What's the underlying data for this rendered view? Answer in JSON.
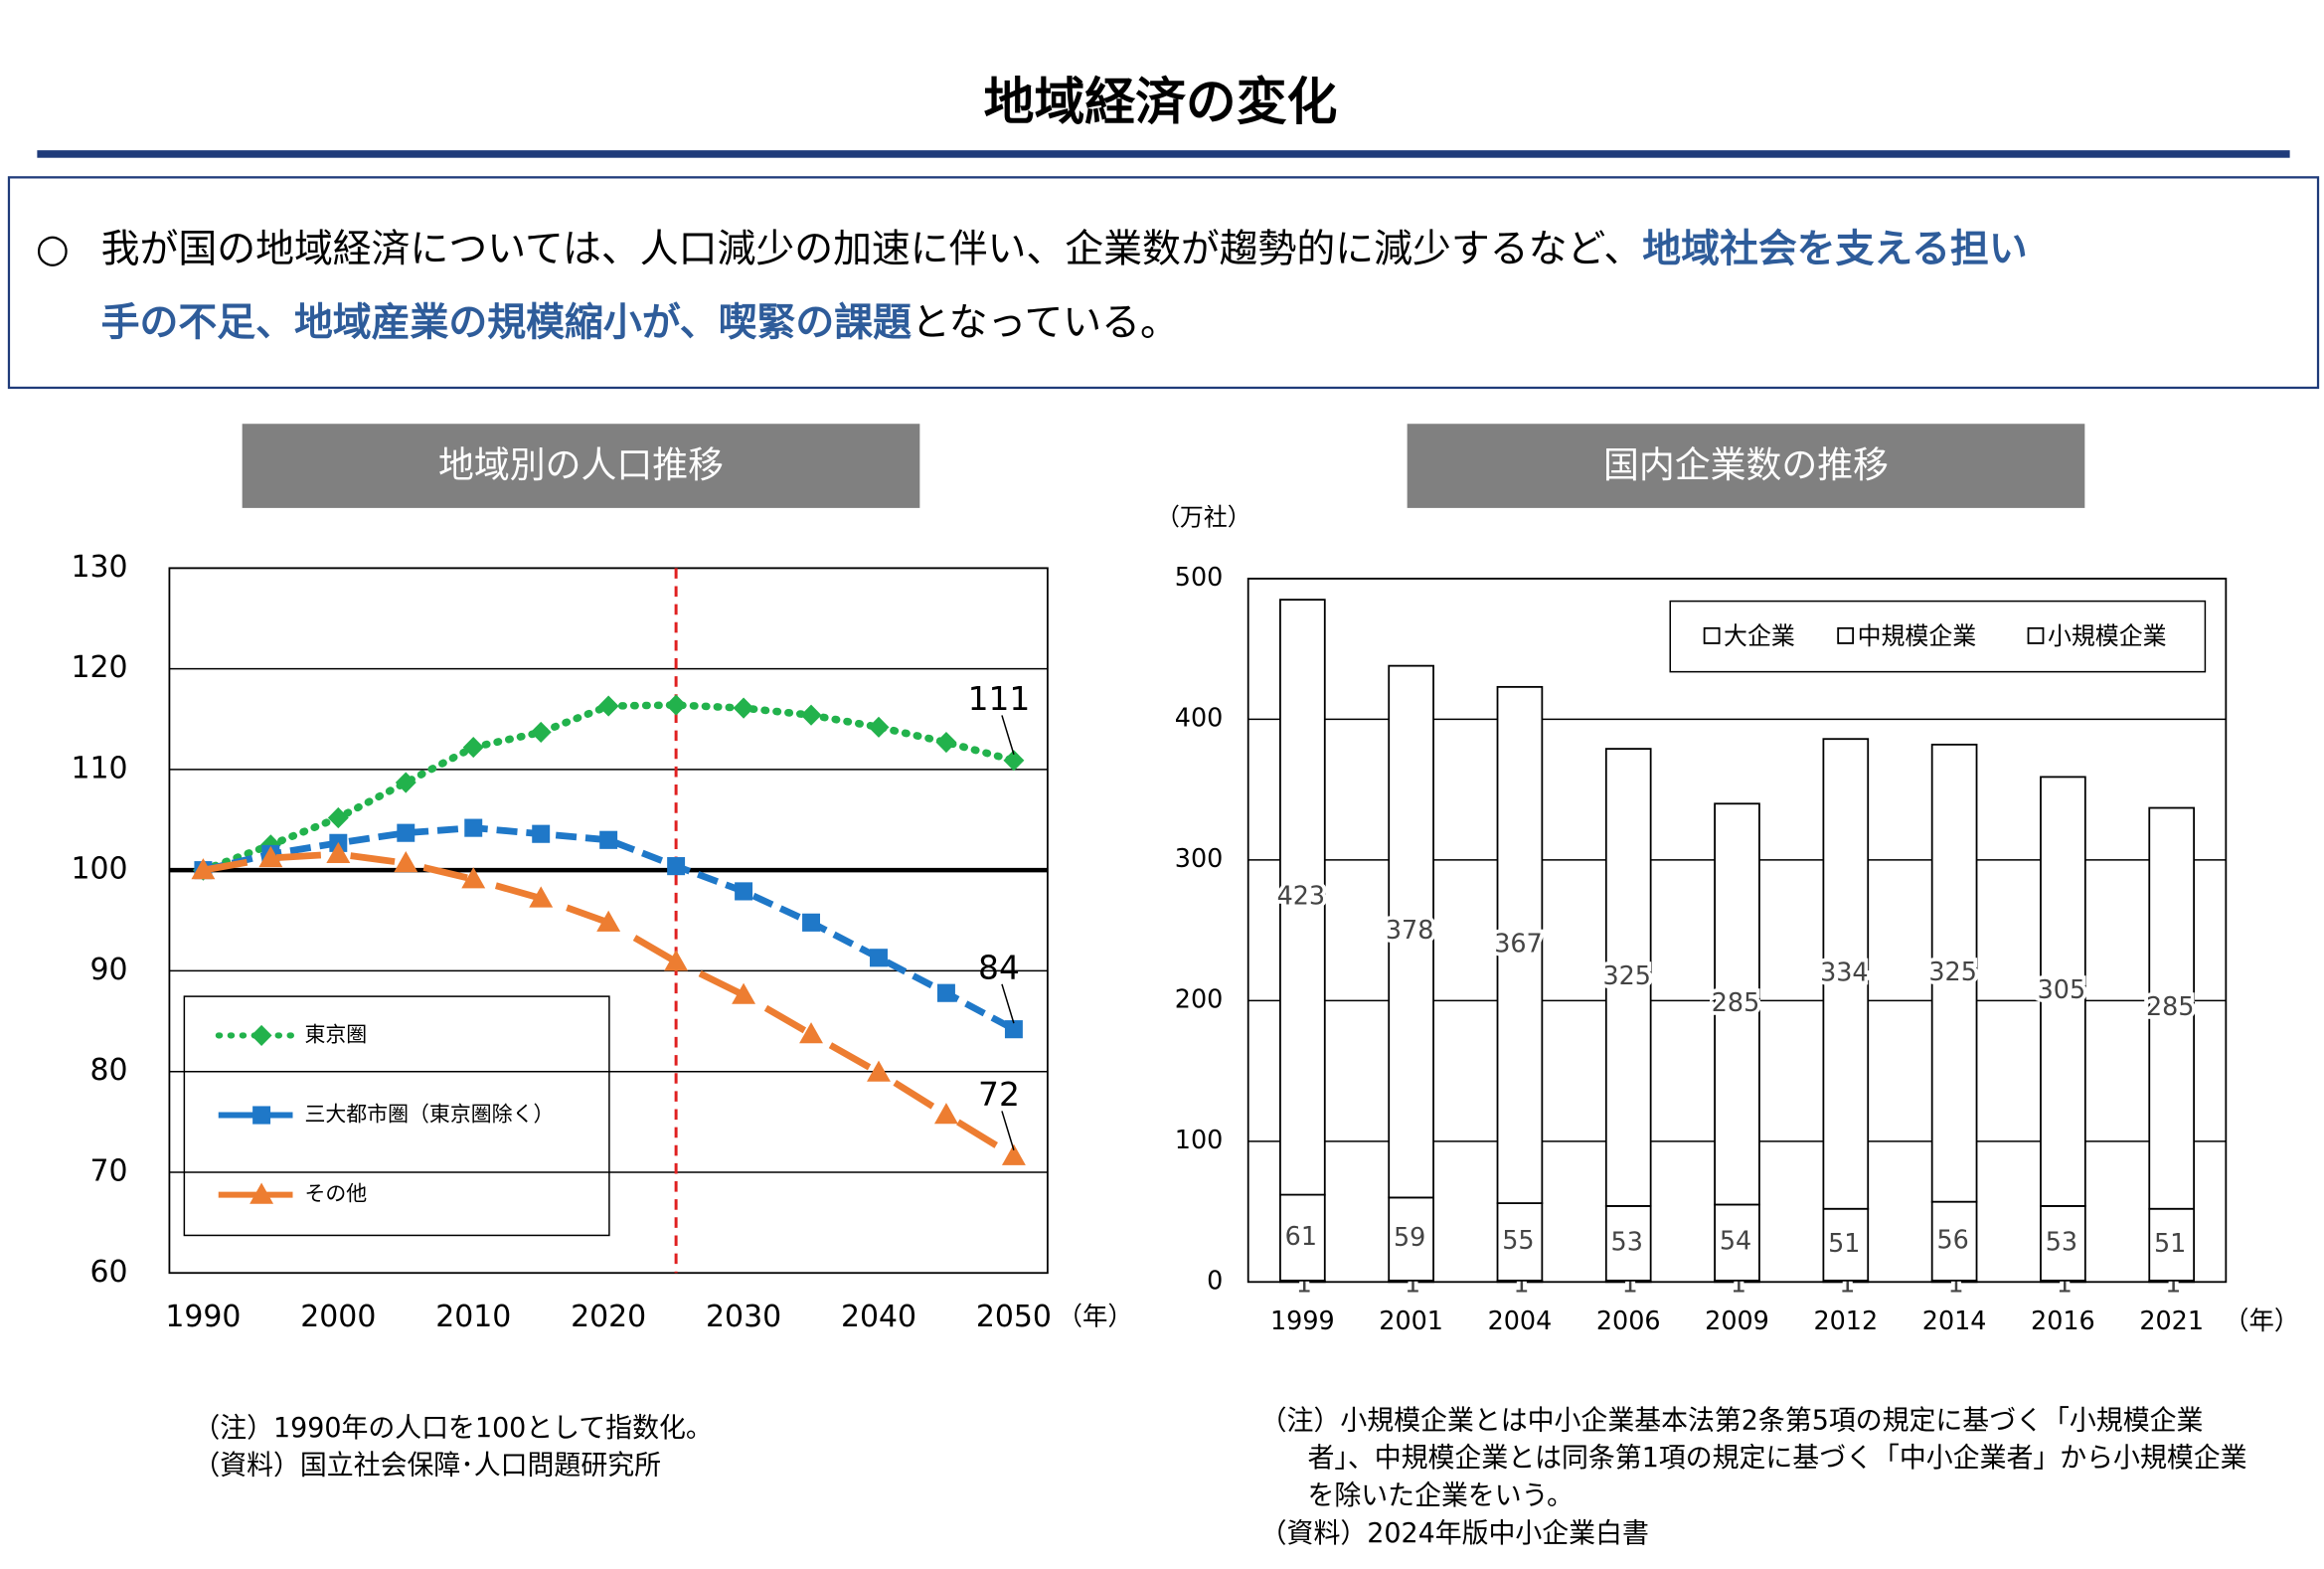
{
  "header": {
    "title": "地域経済の変化",
    "bullet": "○",
    "summary": [
      "我が国の地域経済については、人口減少の加速に伴い、企業数が趨勢的に減少するなど、",
      "地域社会を支える担い",
      "手の不足、地域産業の規模縮小が、喫緊の課題",
      "となっている。"
    ]
  },
  "chart_data": [
    {
      "type": "line",
      "title": "地域別の人口推移",
      "x_unit": "（年）",
      "x": [
        1990,
        1995,
        2000,
        2005,
        2010,
        2015,
        2020,
        2025,
        2030,
        2035,
        2040,
        2045,
        2050
      ],
      "xlim": [
        1987.5,
        2052.5
      ],
      "xticks": [
        1990,
        2000,
        2010,
        2020,
        2030,
        2040,
        2050
      ],
      "ylim": [
        60,
        130
      ],
      "yticks": [
        60,
        70,
        80,
        90,
        100,
        110,
        120,
        130
      ],
      "grid": true,
      "reference_y": 100,
      "marker_x": 2025,
      "legend": "lower left",
      "series": [
        {
          "name": "東京圏",
          "color": "#22b24c",
          "line_style": "dotted",
          "marker": "diamond",
          "values": [
            100,
            102.5,
            105.2,
            108.7,
            112.2,
            113.7,
            116.3,
            116.4,
            116.1,
            115.4,
            114.2,
            112.7,
            110.9
          ],
          "value_labels": [
            null,
            null,
            null,
            null,
            null,
            null,
            null,
            null,
            null,
            null,
            null,
            null,
            "111"
          ]
        },
        {
          "name": "三大都市圏（東京圏除く）",
          "color": "#1f78c8",
          "line_style": "dashed",
          "marker": "square",
          "values": [
            100,
            101.6,
            102.7,
            103.7,
            104.2,
            103.6,
            103,
            100.4,
            97.9,
            94.8,
            91.3,
            87.8,
            84.2
          ],
          "value_labels": [
            null,
            null,
            null,
            null,
            null,
            null,
            null,
            null,
            null,
            null,
            null,
            null,
            "84"
          ]
        },
        {
          "name": "その他",
          "color": "#ed7d31",
          "line_style": "broken",
          "marker": "triangle",
          "values": [
            100,
            101.2,
            101.6,
            100.7,
            99.1,
            97.2,
            94.8,
            90.9,
            87.6,
            83.7,
            79.9,
            75.7,
            71.6
          ],
          "value_labels": [
            null,
            null,
            null,
            null,
            null,
            null,
            null,
            null,
            null,
            null,
            null,
            null,
            "72"
          ]
        }
      ]
    },
    {
      "type": "stacked_bar",
      "title": "国内企業数の推移",
      "y_unit": "（万社）",
      "x_unit": "（年）",
      "categories": [
        "1999",
        "2001",
        "2004",
        "2006",
        "2009",
        "2012",
        "2014",
        "2016",
        "2021"
      ],
      "ylim": [
        0,
        500
      ],
      "yticks": [
        0,
        100,
        200,
        300,
        400,
        500
      ],
      "grid": true,
      "legend": "upper right",
      "series": [
        {
          "name": "大企業",
          "color": "#ffffff",
          "values": [
            1,
            1,
            1,
            1,
            1,
            1,
            1,
            1,
            1
          ]
        },
        {
          "name": "中規模企業",
          "color": "#ffffff",
          "values": [
            61,
            59,
            55,
            53,
            54,
            51,
            56,
            53,
            51
          ]
        },
        {
          "name": "小規模企業",
          "color": "#ffffff",
          "values": [
            423,
            378,
            367,
            325,
            285,
            334,
            325,
            305,
            285
          ]
        }
      ]
    }
  ],
  "notes": {
    "left": [
      "（注）1990年の人口を100として指数化。",
      "（資料）国立社会保障･人口問題研究所"
    ],
    "right": [
      "（注）小規模企業とは中小企業基本法第2条第5項の規定に基づく「小規模企業",
      "者」、中規模企業とは同条第1項の規定に基づく「中小企業者」から小規模企業",
      "を除いた企業をいう。",
      "（資料）2024年版中小企業白書"
    ]
  }
}
